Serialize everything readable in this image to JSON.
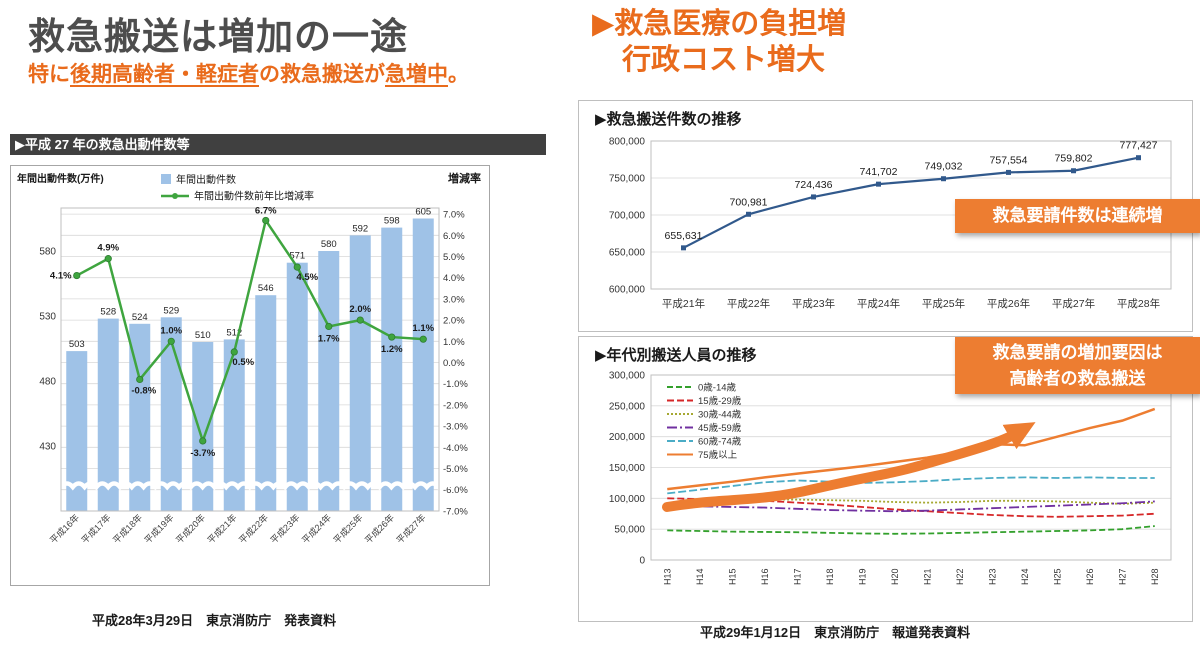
{
  "colors": {
    "title_gray": "#4d4d4d",
    "accent_orange": "#e96b1c",
    "box_orange": "#ed7d31",
    "bar_blue": "#9fc2e7",
    "line_green": "#3fa53f",
    "line_navy": "#31598c"
  },
  "left": {
    "title": "救急搬送は増加の一途",
    "subtitle": {
      "prefix": "特に",
      "underline1": "後期高齢者・軽症者",
      "middle": "の救急搬送が",
      "underline2": "急増中",
      "suffix": "。"
    },
    "footer": "平成28年3月29日　東京消防庁　発表資料"
  },
  "right": {
    "title_line1": "▶救急医療の負担増",
    "title_line2": "行政コスト増大",
    "callout_top": "救急要請件数は連続増",
    "callout_bottom_line1": "救急要請の増加要因は",
    "callout_bottom_line2": "高齢者の救急搬送",
    "footer": "平成29年1月12日　東京消防庁　報道発表資料"
  },
  "chart_data": [
    {
      "type": "bar",
      "title": "▶平成 27 年の救急出動件数等",
      "ylabel_left": "年間出動件数(万件)",
      "ylabel_right": "増減率",
      "legend": [
        "年間出動件数",
        "年間出動件数前年比増減率"
      ],
      "categories": [
        "平成16年",
        "平成17年",
        "平成18年",
        "平成19年",
        "平成20年",
        "平成21年",
        "平成22年",
        "平成23年",
        "平成24年",
        "平成25年",
        "平成26年",
        "平成27年"
      ],
      "bar_values": [
        503,
        528,
        524,
        529,
        510,
        512,
        546,
        571,
        580,
        592,
        598,
        605
      ],
      "line_values_pct": [
        4.1,
        4.9,
        -0.8,
        1.0,
        -3.7,
        0.5,
        6.7,
        4.5,
        1.7,
        2.0,
        1.2,
        1.1
      ],
      "left_axis_ticks": [
        580,
        530,
        480,
        430
      ],
      "right_axis_ticks_pct": [
        7,
        6,
        5,
        4,
        3,
        2,
        1,
        0,
        -1,
        -2,
        -3,
        -4,
        -5,
        -6,
        -7
      ],
      "bar_color": "#9fc2e7",
      "line_color": "#3fa53f",
      "axis_break": true,
      "grid": true,
      "legend_position": "top"
    },
    {
      "type": "line",
      "title": "▶救急搬送件数の推移",
      "categories": [
        "平成21年",
        "平成22年",
        "平成23年",
        "平成24年",
        "平成25年",
        "平成26年",
        "平成27年",
        "平成28年"
      ],
      "values": [
        655631,
        700981,
        724436,
        741702,
        749032,
        757554,
        759802,
        777427
      ],
      "labels": [
        "655,631",
        "700,981",
        "724,436",
        "741,702",
        "749,032",
        "757,554",
        "759,802",
        "777,427"
      ],
      "ylim": [
        600000,
        800000
      ],
      "ytick_step": 50000,
      "line_color": "#31598c",
      "grid": true
    },
    {
      "type": "line",
      "title": "▶年代別搬送人員の推移",
      "categories": [
        "H13",
        "H14",
        "H15",
        "H16",
        "H17",
        "H18",
        "H19",
        "H20",
        "H21",
        "H22",
        "H23",
        "H24",
        "H25",
        "H26",
        "H27",
        "H28"
      ],
      "ylim": [
        0,
        300000
      ],
      "ytick_step": 50000,
      "grid": true,
      "legend_position": "top-left",
      "annotation_arrow_color": "#ed7d31",
      "series": [
        {
          "name": "0歳-14歳",
          "color": "#33a02c",
          "dash": "6 3",
          "values": [
            48000,
            47000,
            46000,
            45500,
            45000,
            44000,
            43000,
            42500,
            43000,
            44000,
            45000,
            46000,
            47000,
            48000,
            50000,
            55000
          ]
        },
        {
          "name": "15歳-29歳",
          "color": "#d62728",
          "dash": "7 3",
          "values": [
            100000,
            99000,
            98000,
            96000,
            93000,
            90000,
            86000,
            82000,
            79000,
            76000,
            73000,
            71000,
            70000,
            71000,
            72000,
            75000
          ]
        },
        {
          "name": "30歳-44歳",
          "color": "#a6a832",
          "dash": "2 2",
          "values": [
            90000,
            93000,
            96000,
            98000,
            98000,
            97000,
            96000,
            94000,
            93000,
            94000,
            96000,
            96000,
            95000,
            93000,
            91000,
            93000
          ]
        },
        {
          "name": "45歳-59歳",
          "color": "#7030a0",
          "dash": "10 3 2 3",
          "values": [
            88000,
            87000,
            86000,
            85000,
            83000,
            81000,
            80000,
            79000,
            80000,
            82000,
            84000,
            86000,
            88000,
            90000,
            92000,
            95000
          ]
        },
        {
          "name": "60歳-74歳",
          "color": "#4bacc6",
          "dash": "8 3",
          "values": [
            108000,
            114000,
            120000,
            126000,
            129000,
            127000,
            125000,
            126000,
            128000,
            131000,
            133000,
            134000,
            133000,
            134000,
            133000,
            133000
          ]
        },
        {
          "name": "75歳以上",
          "color": "#ed7d31",
          "dash": "",
          "width": 2.5,
          "values": [
            115000,
            121000,
            127000,
            134000,
            140000,
            146000,
            152000,
            159000,
            166000,
            176000,
            188000,
            186000,
            200000,
            214000,
            226000,
            245000
          ]
        }
      ]
    }
  ]
}
